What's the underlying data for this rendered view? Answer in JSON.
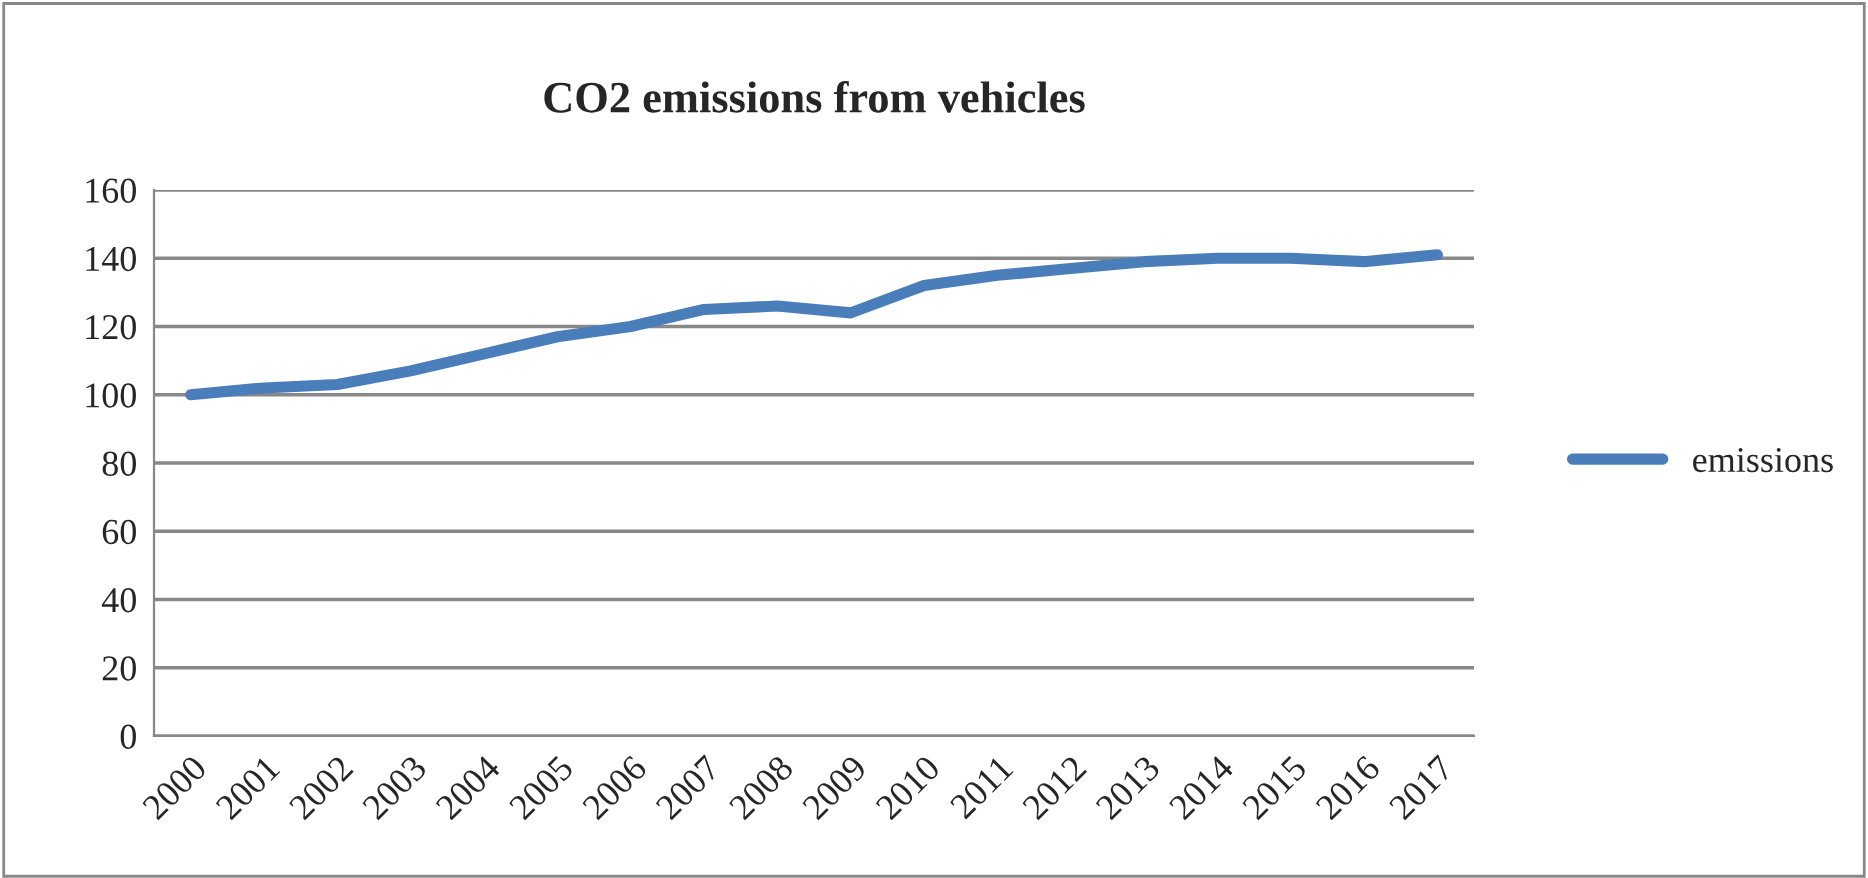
{
  "chart_data": {
    "type": "line",
    "title": "CO2 emissions from vehicles",
    "categories": [
      "2000",
      "2001",
      "2002",
      "2003",
      "2004",
      "2005",
      "2006",
      "2007",
      "2008",
      "2009",
      "2010",
      "2011",
      "2012",
      "2013",
      "2014",
      "2015",
      "2016",
      "2017"
    ],
    "series": [
      {
        "name": "emissions",
        "color": "#4a7ebb",
        "values": [
          100,
          102,
          103,
          107,
          112,
          117,
          120,
          125,
          126,
          124,
          132,
          135,
          137,
          139,
          140,
          140,
          139,
          141
        ]
      }
    ],
    "ylim": [
      0,
      160
    ],
    "yticks": [
      0,
      20,
      40,
      60,
      80,
      100,
      120,
      140,
      160
    ],
    "grid": "y",
    "legend": "right",
    "marker": "none",
    "line_style": "solid"
  }
}
